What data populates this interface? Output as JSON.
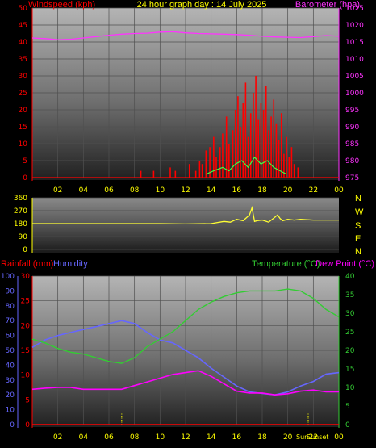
{
  "title": "24 hour graph day : 14 July 2025",
  "colors": {
    "wind": "#ff0000",
    "gust_green": "#40ff40",
    "barometer": "#ff33ff",
    "direction": "#ffff33",
    "rain": "#ff0000",
    "humidity": "#6666ff",
    "temperature": "#33cc33",
    "dewpoint": "#ff00ff",
    "compass": "#ffff00"
  },
  "headers": {
    "windspeed": "Windspeed (kph)",
    "barometer": "Barometer (hpa)",
    "rainfall": "Rainfall (mm)",
    "humidity": "Humidity",
    "temperature": "Temperature (°C)",
    "dewpoint": "Dew Point (°C)"
  },
  "compass": [
    "N",
    "W",
    "S",
    "E",
    "N"
  ],
  "markers": {
    "sunrise_hour": 7,
    "sunset_hour": 21.6,
    "sunset_label": "Sunset",
    "sunrise_label": "Sun"
  },
  "chart_data": [
    {
      "type": "line",
      "name": "wind-barometer",
      "x_ticks": [
        "02",
        "04",
        "06",
        "08",
        "10",
        "12",
        "14",
        "16",
        "18",
        "20",
        "22",
        "00"
      ],
      "left_axis": {
        "ticks": [
          0,
          5,
          10,
          15,
          20,
          25,
          30,
          35,
          40,
          45,
          50
        ],
        "ylim": [
          0,
          50
        ]
      },
      "right_axis": {
        "ticks": [
          975,
          980,
          985,
          990,
          995,
          1000,
          1005,
          1010,
          1015,
          1020,
          1025
        ],
        "ylim": [
          975,
          1025
        ]
      },
      "series": [
        {
          "name": "Barometer (hpa)",
          "x": [
            0,
            1,
            2,
            3,
            4,
            5,
            6,
            7,
            8,
            9,
            10,
            11,
            12,
            13,
            14,
            15,
            16,
            17,
            18,
            19,
            20,
            21,
            22,
            23,
            24
          ],
          "values": [
            1016.2,
            1016.0,
            1015.7,
            1015.8,
            1016.2,
            1016.6,
            1017.0,
            1017.3,
            1017.5,
            1017.6,
            1017.9,
            1018.0,
            1017.7,
            1017.5,
            1017.4,
            1017.3,
            1017.2,
            1017.0,
            1016.7,
            1016.5,
            1016.4,
            1016.3,
            1016.6,
            1016.9,
            1016.7
          ]
        },
        {
          "name": "Windspeed (kph)",
          "x": [
            8.5,
            9.5,
            10.8,
            11.2,
            12.3,
            12.8,
            13.1,
            13.3,
            13.6,
            13.9,
            14.2,
            14.4,
            14.7,
            14.9,
            15.2,
            15.4,
            15.7,
            15.9,
            16.1,
            16.3,
            16.5,
            16.7,
            16.9,
            17.1,
            17.3,
            17.5,
            17.7,
            17.9,
            18.1,
            18.3,
            18.5,
            18.7,
            18.9,
            19.1,
            19.3,
            19.5,
            19.7,
            19.9,
            20.1,
            20.3,
            20.5,
            20.8
          ],
          "values": [
            2,
            2,
            3,
            2,
            4,
            2,
            5,
            4,
            8,
            9,
            12,
            6,
            9,
            13,
            18,
            10,
            14,
            20,
            24,
            15,
            22,
            28,
            12,
            19,
            25,
            30,
            17,
            22,
            20,
            27,
            14,
            18,
            23,
            16,
            11,
            19,
            7,
            12,
            6,
            9,
            4,
            3
          ]
        },
        {
          "name": "Gust (kph)",
          "x": [
            13.6,
            14.2,
            14.9,
            15.4,
            15.9,
            16.4,
            16.9,
            17.4,
            17.9,
            18.4,
            18.9,
            19.4,
            19.9
          ],
          "values": [
            1,
            2,
            3,
            2,
            4,
            5,
            3,
            6,
            4,
            5,
            3,
            2,
            1
          ]
        }
      ]
    },
    {
      "type": "line",
      "name": "wind-direction",
      "left_axis": {
        "ticks": [
          0,
          90,
          180,
          270,
          360
        ],
        "ylim": [
          0,
          360
        ]
      },
      "series": [
        {
          "name": "Wind direction",
          "x": [
            0,
            2,
            4,
            6,
            8,
            10,
            12,
            14,
            15,
            15.5,
            16,
            16.5,
            17,
            17.2,
            17.4,
            17.6,
            18,
            18.5,
            19,
            19.2,
            19.4,
            19.6,
            20,
            20.5,
            21,
            22,
            23,
            24
          ],
          "values": [
            180,
            180,
            180,
            180,
            180,
            180,
            178,
            180,
            195,
            190,
            210,
            200,
            240,
            290,
            195,
            200,
            205,
            190,
            225,
            240,
            215,
            200,
            210,
            205,
            210,
            205,
            205,
            205
          ]
        }
      ]
    },
    {
      "type": "line",
      "name": "rain-humidity-temperature",
      "x_ticks": [
        "02",
        "04",
        "06",
        "08",
        "10",
        "12",
        "14",
        "16",
        "18",
        "20",
        "22",
        "00"
      ],
      "left_axis_humidity": {
        "ticks": [
          0,
          10,
          20,
          30,
          40,
          50,
          60,
          70,
          80,
          90,
          100
        ],
        "ylim": [
          0,
          100
        ]
      },
      "left_axis_rain": {
        "ticks": [
          0,
          5,
          10,
          15,
          20,
          25,
          30
        ],
        "ylim": [
          0,
          30
        ]
      },
      "right_axis": {
        "ticks": [
          0,
          5,
          10,
          15,
          20,
          25,
          30,
          35,
          40
        ],
        "ylim": [
          0,
          40
        ]
      },
      "series": [
        {
          "name": "Humidity",
          "x": [
            0,
            1,
            2,
            3,
            4,
            5,
            6,
            7,
            8,
            9,
            10,
            11,
            12,
            13,
            14,
            15,
            16,
            17,
            18,
            19,
            20,
            21,
            22,
            23,
            24
          ],
          "values": [
            52,
            57,
            60,
            62,
            64,
            66,
            68,
            70,
            68,
            62,
            57,
            55,
            50,
            45,
            38,
            32,
            26,
            22,
            21,
            20,
            22,
            26,
            29,
            34,
            35
          ]
        },
        {
          "name": "Temperature (°C)",
          "x": [
            0,
            1,
            2,
            3,
            4,
            5,
            6,
            7,
            8,
            9,
            10,
            11,
            12,
            13,
            14,
            15,
            16,
            17,
            18,
            19,
            20,
            21,
            22,
            23,
            24
          ],
          "values": [
            23,
            22,
            20.5,
            19.5,
            19,
            18,
            17,
            16.5,
            18,
            21,
            23,
            25,
            28,
            31,
            33,
            34.5,
            35.5,
            36,
            36,
            36,
            36.5,
            36,
            34,
            31,
            29
          ]
        },
        {
          "name": "Dew Point (°C)",
          "x": [
            0,
            1,
            2,
            3,
            4,
            5,
            6,
            7,
            8,
            9,
            10,
            11,
            12,
            13,
            14,
            15,
            16,
            17,
            18,
            19,
            20,
            21,
            22,
            23,
            24
          ],
          "values": [
            9.5,
            9.8,
            10,
            10,
            9.5,
            9.5,
            9.5,
            9.5,
            10.5,
            11.5,
            12.5,
            13.5,
            14,
            14.5,
            13,
            11,
            9,
            8.5,
            8.5,
            8,
            8.3,
            9,
            9.3,
            8.8,
            8.8
          ]
        },
        {
          "name": "Rainfall (mm)",
          "x": [
            0,
            24
          ],
          "values": [
            0,
            0
          ]
        }
      ]
    }
  ]
}
